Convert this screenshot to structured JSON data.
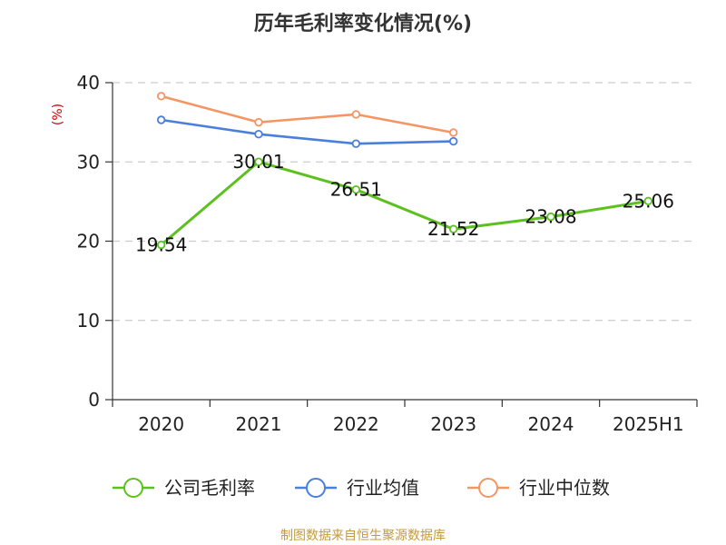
{
  "chart_data": {
    "type": "line",
    "title": "历年毛利率变化情况(%)",
    "ylabel": "(%)",
    "xlabel": "",
    "categories": [
      "2020",
      "2021",
      "2022",
      "2023",
      "2024",
      "2025H1"
    ],
    "ylim": [
      0,
      40
    ],
    "yticks": [
      0,
      10,
      20,
      30,
      40
    ],
    "grid": true,
    "legend_position": "bottom",
    "series": [
      {
        "name": "公司毛利率",
        "color": "#5cc11f",
        "values": [
          19.54,
          30.01,
          26.51,
          21.52,
          23.08,
          25.06
        ],
        "labels": [
          "19.54",
          "30.01",
          "26.51",
          "21.52",
          "23.08",
          "25.06"
        ]
      },
      {
        "name": "行业均值",
        "color": "#4a7fdc",
        "values": [
          35.3,
          33.5,
          32.3,
          32.6,
          null,
          null
        ]
      },
      {
        "name": "行业中位数",
        "color": "#f59563",
        "values": [
          38.3,
          35.0,
          36.0,
          33.7,
          null,
          null
        ]
      }
    ]
  },
  "source": "制图数据来自恒生聚源数据库"
}
